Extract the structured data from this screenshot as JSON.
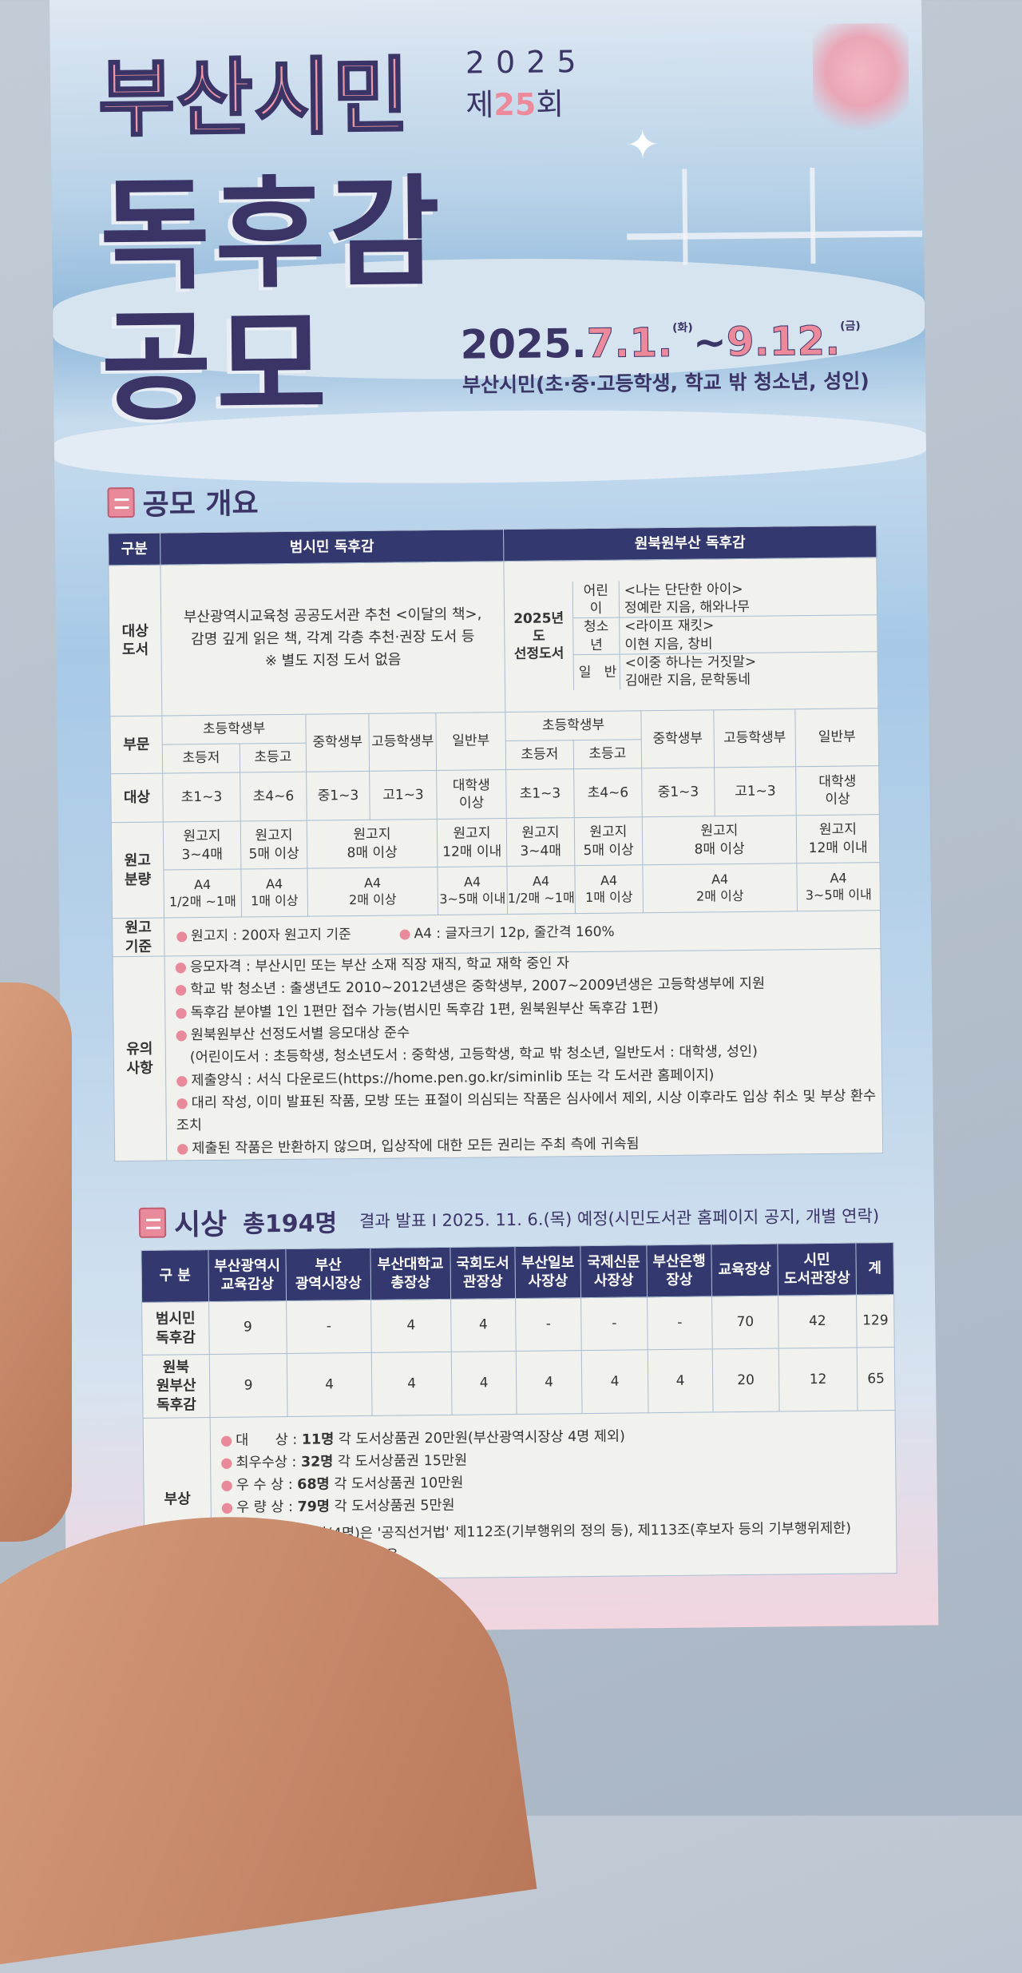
{
  "header": {
    "title_pink": "부산시민",
    "year": "2025",
    "edition_prefix": "제",
    "edition_num": "25",
    "edition_suffix": "회",
    "title_main_1": "독후감",
    "title_main_2": "공모",
    "date_year": "2025.",
    "date_start": "7.1.",
    "date_start_day": "(화)",
    "date_tilde": "~",
    "date_end": "9.12.",
    "date_end_day": "(금)",
    "eligibility": "부산시민(초·중·고등학생, 학교 밖 청소년, 성인)"
  },
  "overview": {
    "section_title": "공모 개요",
    "col_label": "구분",
    "contest_a": "범시민 독후감",
    "contest_b": "원북원부산 독후감",
    "books_label": "대상\n도서",
    "books_a": "부산광역시교육청 공공도서관 추천 <이달의 책>,\n감명 깊게 읽은 책, 각계 각층 추천·권장 도서 등\n※ 별도 지정 도서 없음",
    "books_b_label": "2025년도\n선정도서",
    "books_b": [
      {
        "group": "어린이",
        "title": "<나는 단단한 아이>\n정예란 지음, 해와나무"
      },
      {
        "group": "청소년",
        "title": "<라이프 재킷>\n이현 지음, 창비"
      },
      {
        "group": "일   반",
        "title": "<이중 하나는 거짓말>\n김애란 지음, 문학동네"
      }
    ],
    "division_label": "부문",
    "divisions": {
      "elem": "초등학생부",
      "elem_low": "초등저",
      "elem_high": "초등고",
      "middle": "중학생부",
      "high": "고등학생부",
      "general": "일반부"
    },
    "target_label": "대상",
    "targets": [
      "초1~3",
      "초4~6",
      "중1~3",
      "고1~3",
      "대학생\n이상"
    ],
    "length_label": "원고\n분량",
    "length_manuscript": [
      "원고지\n3~4매",
      "원고지\n5매 이상",
      "원고지\n8매 이상",
      "원고지\n12매 이내"
    ],
    "length_a4": [
      "A4\n1/2매 ~1매",
      "A4\n1매 이상",
      "A4\n2매 이상",
      "A4\n3~5매 이내"
    ],
    "standard_label": "원고\n기준",
    "standards": [
      "원고지 : 200자 원고지 기준",
      "A4 : 글자크기 12p, 줄간격 160%"
    ],
    "notes_label": "유의\n사항",
    "notes": [
      {
        "bullet": true,
        "text": "응모자격 : 부산시민 또는 부산 소재 직장 재직, 학교 재학 중인 자"
      },
      {
        "bullet": true,
        "text": "학교 밖 청소년 : 출생년도 2010~2012년생은 중학생부, 2007~2009년생은 고등학생부에 지원"
      },
      {
        "bullet": true,
        "text": "독후감 분야별 1인 1편만 접수 가능(범시민 독후감 1편, 원북원부산 독후감 1편)"
      },
      {
        "bullet": true,
        "text": "원북원부산 선정도서별 응모대상 준수"
      },
      {
        "bullet": false,
        "text": "(어린이도서 : 초등학생, 청소년도서 : 중학생, 고등학생, 학교 밖 청소년, 일반도서 : 대학생, 성인)"
      },
      {
        "bullet": true,
        "text": "제출양식 : 서식 다운로드(https://home.pen.go.kr/siminlib 또는 각 도서관 홈페이지)"
      },
      {
        "bullet": true,
        "text": "대리 작성, 이미 발표된 작품, 모방 또는 표절이 의심되는 작품은 심사에서 제외, 시상 이후라도 입상 취소 및 부상 환수 조치"
      },
      {
        "bullet": true,
        "text": "제출된 작품은 반환하지 않으며, 입상작에 대한 모든 권리는 주최 측에 귀속됨"
      }
    ]
  },
  "awards": {
    "section_title": "시상",
    "total": "총194명",
    "announcement": "결과 발표 I 2025. 11. 6.(목) 예정(시민도서관 홈페이지 공지, 개별 연락)",
    "columns": [
      "구 분",
      "부산광역시\n교육감상",
      "부산\n광역시장상",
      "부산대학교\n총장상",
      "국회도서\n관장상",
      "부산일보\n사장상",
      "국제신문\n사장상",
      "부산은행\n장상",
      "교육장상",
      "시민\n도서관장상",
      "계"
    ],
    "rows": [
      {
        "label": "범시민\n독후감",
        "values": [
          "9",
          "-",
          "4",
          "4",
          "-",
          "-",
          "-",
          "70",
          "42",
          "129"
        ]
      },
      {
        "label": "원북\n원부산\n독후감",
        "values": [
          "9",
          "4",
          "4",
          "4",
          "4",
          "4",
          "4",
          "20",
          "12",
          "65"
        ]
      }
    ],
    "prize_label": "부상",
    "prizes": [
      {
        "name": "대      상",
        "count": "11명",
        "desc": "각 도서상품권 20만원(부산광역시장상 4명 제외)"
      },
      {
        "name": "최우수상",
        "count": "32명",
        "desc": "각 도서상품권 15만원"
      },
      {
        "name": "우 수 상",
        "count": "68명",
        "desc": "각 도서상품권 10만원"
      },
      {
        "name": "우 량 상",
        "count": "79명",
        "desc": "각 도서상품권 5만원"
      }
    ],
    "prize_note": "※ 부산광역시장상(4명)은 '공직선거법' 제112조(기부행위의 정의 등), 제113조(후보자 등의 기부행위제한)\n    규정에 따라 부상 지급 없음"
  },
  "colors": {
    "navy": "#33386e",
    "pink": "#e98a9b",
    "sky": "#8fb8da"
  }
}
